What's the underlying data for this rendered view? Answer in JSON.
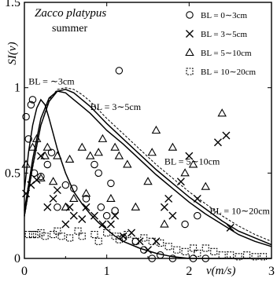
{
  "chart_data": {
    "type": "scatter",
    "title": "Zacco platypus",
    "subtitle": "summer",
    "xlabel": "v(m/s)",
    "ylabel": "SI(v)",
    "xlim": [
      0,
      3
    ],
    "ylim": [
      0,
      1.5
    ],
    "xticks": [
      "0",
      "1",
      "2",
      "3"
    ],
    "yticks": [
      "0",
      "0.5",
      "1",
      "1.5"
    ],
    "legend_position": "top-right",
    "series": [
      {
        "name": "B_L = 0~3cm",
        "legend_label": "BL = 0∼3cm",
        "marker": "circle",
        "points": [
          [
            0.02,
            0.83
          ],
          [
            0.05,
            0.7
          ],
          [
            0.08,
            0.9
          ],
          [
            0.1,
            0.93
          ],
          [
            0.12,
            0.5
          ],
          [
            0.2,
            0.48
          ],
          [
            0.28,
            0.55
          ],
          [
            0.33,
            0.62
          ],
          [
            0.4,
            0.3
          ],
          [
            0.5,
            0.43
          ],
          [
            0.6,
            0.41
          ],
          [
            0.75,
            0.35
          ],
          [
            0.85,
            0.55
          ],
          [
            0.9,
            0.5
          ],
          [
            0.93,
            0.3
          ],
          [
            1.0,
            0.25
          ],
          [
            1.05,
            0.44
          ],
          [
            1.1,
            0.28
          ],
          [
            1.15,
            1.1
          ],
          [
            1.2,
            0.12
          ],
          [
            1.35,
            0.1
          ],
          [
            1.45,
            0.05
          ],
          [
            1.55,
            0.0
          ],
          [
            1.65,
            0.02
          ],
          [
            1.8,
            0.0
          ],
          [
            1.95,
            0.2
          ],
          [
            2.05,
            0.0
          ],
          [
            2.1,
            0.25
          ],
          [
            2.2,
            0.0
          ]
        ]
      },
      {
        "name": "B_L = 3~5cm",
        "legend_label": "BL = 3∼5cm",
        "marker": "x",
        "points": [
          [
            0.02,
            0.38
          ],
          [
            0.08,
            0.43
          ],
          [
            0.15,
            0.46
          ],
          [
            0.2,
            0.6
          ],
          [
            0.28,
            0.3
          ],
          [
            0.35,
            0.35
          ],
          [
            0.4,
            0.4
          ],
          [
            0.5,
            0.2
          ],
          [
            0.55,
            0.3
          ],
          [
            0.6,
            0.25
          ],
          [
            0.7,
            0.23
          ],
          [
            0.75,
            0.3
          ],
          [
            0.85,
            0.25
          ],
          [
            0.95,
            0.2
          ],
          [
            1.05,
            0.2
          ],
          [
            1.1,
            0.25
          ],
          [
            1.2,
            0.13
          ],
          [
            1.3,
            0.15
          ],
          [
            1.4,
            0.1
          ],
          [
            1.5,
            0.05
          ],
          [
            1.6,
            0.1
          ],
          [
            1.7,
            0.3
          ],
          [
            1.75,
            0.35
          ],
          [
            1.8,
            0.25
          ],
          [
            1.9,
            0.45
          ],
          [
            2.0,
            0.6
          ],
          [
            2.1,
            0.35
          ],
          [
            2.35,
            0.68
          ],
          [
            2.45,
            0.72
          ],
          [
            2.5,
            0.18
          ]
        ]
      },
      {
        "name": "B_L = 5~10cm",
        "legend_label": "BL = 5∼10cm",
        "marker": "triangle",
        "points": [
          [
            0.02,
            0.55
          ],
          [
            0.1,
            0.65
          ],
          [
            0.15,
            0.7
          ],
          [
            0.2,
            0.47
          ],
          [
            0.25,
            0.6
          ],
          [
            0.28,
            0.65
          ],
          [
            0.35,
            0.45
          ],
          [
            0.4,
            0.6
          ],
          [
            0.5,
            0.3
          ],
          [
            0.55,
            0.58
          ],
          [
            0.6,
            0.35
          ],
          [
            0.7,
            0.65
          ],
          [
            0.75,
            0.38
          ],
          [
            0.8,
            0.6
          ],
          [
            0.9,
            0.62
          ],
          [
            0.95,
            0.7
          ],
          [
            1.05,
            0.35
          ],
          [
            1.1,
            0.65
          ],
          [
            1.15,
            0.6
          ],
          [
            1.25,
            0.55
          ],
          [
            1.35,
            0.3
          ],
          [
            1.5,
            0.45
          ],
          [
            1.55,
            0.62
          ],
          [
            1.6,
            0.75
          ],
          [
            1.7,
            0.2
          ],
          [
            1.8,
            0.65
          ],
          [
            1.95,
            0.5
          ],
          [
            2.05,
            0.55
          ],
          [
            2.2,
            0.42
          ],
          [
            2.4,
            0.85
          ]
        ]
      },
      {
        "name": "B_L = 10~20cm",
        "legend_label": "BL = 10∼20cm",
        "marker": "square",
        "points": [
          [
            0.05,
            0.14
          ],
          [
            0.1,
            0.14
          ],
          [
            0.15,
            0.14
          ],
          [
            0.2,
            0.15
          ],
          [
            0.25,
            0.13
          ],
          [
            0.35,
            0.14
          ],
          [
            0.4,
            0.16
          ],
          [
            0.45,
            0.13
          ],
          [
            0.55,
            0.12
          ],
          [
            0.65,
            0.16
          ],
          [
            0.7,
            0.13
          ],
          [
            0.85,
            0.14
          ],
          [
            0.9,
            0.1
          ],
          [
            1.0,
            0.15
          ],
          [
            1.1,
            0.13
          ],
          [
            1.15,
            0.11
          ],
          [
            1.25,
            0.14
          ],
          [
            1.35,
            0.1
          ],
          [
            1.45,
            0.12
          ],
          [
            1.55,
            0.1
          ],
          [
            1.65,
            0.09
          ],
          [
            1.75,
            0.07
          ],
          [
            1.85,
            0.05
          ],
          [
            1.95,
            0.04
          ],
          [
            2.05,
            0.06
          ],
          [
            2.1,
            0.03
          ],
          [
            2.2,
            0.06
          ],
          [
            2.3,
            0.04
          ],
          [
            2.4,
            0.02
          ],
          [
            2.5,
            0.02
          ],
          [
            2.6,
            0.01
          ],
          [
            2.7,
            0.02
          ],
          [
            2.8,
            0.01
          ],
          [
            2.9,
            0.01
          ]
        ]
      }
    ],
    "curves": [
      {
        "label": "B_L = ~3cm",
        "style": "solid",
        "points": [
          [
            0,
            0.4
          ],
          [
            0.05,
            0.62
          ],
          [
            0.1,
            0.78
          ],
          [
            0.15,
            0.88
          ],
          [
            0.2,
            0.93
          ],
          [
            0.25,
            0.9
          ],
          [
            0.3,
            0.82
          ],
          [
            0.4,
            0.64
          ],
          [
            0.5,
            0.5
          ],
          [
            0.6,
            0.39
          ],
          [
            0.7,
            0.32
          ],
          [
            0.8,
            0.26
          ],
          [
            0.9,
            0.21
          ],
          [
            1.0,
            0.17
          ],
          [
            1.1,
            0.13
          ],
          [
            1.2,
            0.1
          ],
          [
            1.4,
            0.06
          ],
          [
            1.6,
            0.03
          ],
          [
            1.8,
            0.01
          ],
          [
            2.0,
            0.0
          ],
          [
            3.0,
            0.0
          ]
        ]
      },
      {
        "label": "B_L = 3~5cm",
        "style": "solid",
        "points": [
          [
            0,
            0.28
          ],
          [
            0.1,
            0.58
          ],
          [
            0.2,
            0.82
          ],
          [
            0.3,
            0.94
          ],
          [
            0.4,
            0.98
          ],
          [
            0.5,
            0.97
          ],
          [
            0.6,
            0.93
          ],
          [
            0.7,
            0.89
          ],
          [
            0.8,
            0.85
          ],
          [
            0.9,
            0.8
          ],
          [
            1.0,
            0.75
          ],
          [
            1.2,
            0.67
          ],
          [
            1.4,
            0.58
          ],
          [
            1.6,
            0.49
          ],
          [
            1.8,
            0.41
          ],
          [
            2.0,
            0.33
          ],
          [
            2.2,
            0.26
          ],
          [
            2.4,
            0.2
          ],
          [
            2.6,
            0.14
          ],
          [
            2.8,
            0.1
          ],
          [
            3.0,
            0.07
          ]
        ]
      },
      {
        "label": "B_L = 5~10cm",
        "style": "solid",
        "points": [
          [
            0,
            0.25
          ],
          [
            0.1,
            0.54
          ],
          [
            0.2,
            0.78
          ],
          [
            0.3,
            0.92
          ],
          [
            0.4,
            0.98
          ],
          [
            0.5,
            0.99
          ],
          [
            0.6,
            0.97
          ],
          [
            0.7,
            0.93
          ],
          [
            0.8,
            0.89
          ],
          [
            0.9,
            0.84
          ],
          [
            1.0,
            0.79
          ],
          [
            1.2,
            0.7
          ],
          [
            1.4,
            0.61
          ],
          [
            1.6,
            0.52
          ],
          [
            1.8,
            0.44
          ],
          [
            2.0,
            0.36
          ],
          [
            2.2,
            0.29
          ],
          [
            2.4,
            0.22
          ],
          [
            2.6,
            0.16
          ],
          [
            2.8,
            0.12
          ],
          [
            3.0,
            0.08
          ]
        ]
      },
      {
        "label": "B_L = 10~20cm",
        "style": "dashed",
        "points": [
          [
            0,
            0.24
          ],
          [
            0.1,
            0.53
          ],
          [
            0.2,
            0.78
          ],
          [
            0.3,
            0.93
          ],
          [
            0.4,
            0.99
          ],
          [
            0.5,
            1.0
          ],
          [
            0.6,
            0.99
          ],
          [
            0.7,
            0.96
          ],
          [
            0.8,
            0.92
          ],
          [
            0.9,
            0.87
          ],
          [
            1.0,
            0.82
          ],
          [
            1.2,
            0.73
          ],
          [
            1.4,
            0.64
          ],
          [
            1.6,
            0.55
          ],
          [
            1.8,
            0.47
          ],
          [
            2.0,
            0.39
          ],
          [
            2.2,
            0.32
          ],
          [
            2.4,
            0.25
          ],
          [
            2.6,
            0.19
          ],
          [
            2.8,
            0.14
          ],
          [
            3.0,
            0.1
          ]
        ]
      }
    ],
    "annotations": [
      {
        "text": "BL = ∼3cm",
        "x": 0.05,
        "y": 1.02
      },
      {
        "text": "BL = 3∼5cm",
        "x": 0.8,
        "y": 0.87
      },
      {
        "text": "BL = 5∼10cm",
        "x": 1.7,
        "y": 0.55
      },
      {
        "text": "BL = 10∼20cm",
        "x": 2.25,
        "y": 0.26
      }
    ]
  }
}
